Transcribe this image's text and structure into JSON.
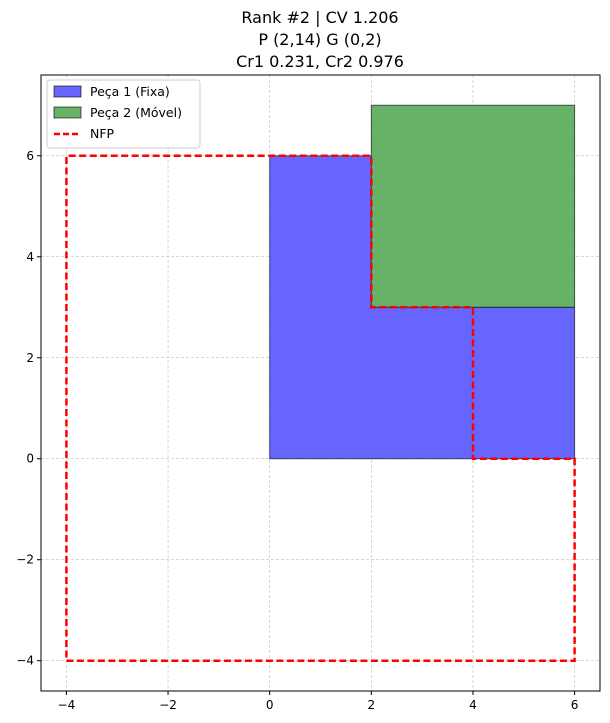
{
  "chart_data": {
    "type": "area",
    "title_lines": [
      "Rank #2 | CV 1.206",
      "P (2,14) G (0,2)",
      "Cr1 0.231, Cr2 0.976"
    ],
    "xlim": [
      -4.5,
      6.5
    ],
    "ylim": [
      -4.6,
      7.6
    ],
    "x_ticks": [
      -4,
      -2,
      0,
      2,
      4,
      6
    ],
    "y_ticks": [
      -4,
      -2,
      0,
      2,
      4,
      6
    ],
    "x_tick_labels": [
      "−4",
      "−2",
      "0",
      "2",
      "4",
      "6"
    ],
    "y_tick_labels": [
      "−4",
      "−2",
      "0",
      "2",
      "4",
      "6"
    ],
    "grid": true,
    "legend_position": "top-left",
    "series": [
      {
        "name": "Peça 1 (Fixa)",
        "kind": "polygon",
        "color": "#6666ff",
        "points": [
          [
            0,
            0
          ],
          [
            6,
            0
          ],
          [
            6,
            3
          ],
          [
            4,
            3
          ],
          [
            4,
            6
          ],
          [
            0,
            6
          ]
        ]
      },
      {
        "name": "Peça 2 (Móvel)",
        "kind": "polygon",
        "color": "#66b266",
        "points": [
          [
            2,
            3
          ],
          [
            6,
            3
          ],
          [
            6,
            7
          ],
          [
            2,
            7
          ]
        ]
      },
      {
        "name": "NFP",
        "kind": "dashed-outline",
        "color": "#ff0000",
        "points": [
          [
            -4,
            -4
          ],
          [
            6,
            -4
          ],
          [
            6,
            0
          ],
          [
            4,
            0
          ],
          [
            4,
            3
          ],
          [
            2,
            3
          ],
          [
            2,
            6
          ],
          [
            -4,
            6
          ],
          [
            -4,
            -4
          ]
        ]
      }
    ]
  }
}
